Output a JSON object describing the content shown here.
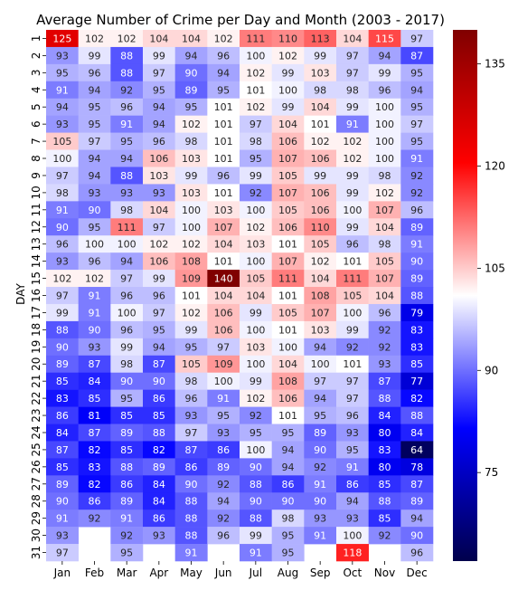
{
  "chart_data": {
    "type": "heatmap",
    "title": "Average Number of Crime per Day and Month (2003 - 2017)",
    "xlabel": "",
    "ylabel": "DAY",
    "x_categories": [
      "Jan",
      "Feb",
      "Mar",
      "Apr",
      "May",
      "Jun",
      "Jul",
      "Aug",
      "Sep",
      "Oct",
      "Nov",
      "Dec"
    ],
    "y_categories": [
      "1",
      "2",
      "3",
      "4",
      "5",
      "6",
      "7",
      "8",
      "9",
      "10",
      "11",
      "12",
      "13",
      "14",
      "15",
      "16",
      "17",
      "18",
      "19",
      "20",
      "21",
      "22",
      "23",
      "24",
      "25",
      "26",
      "27",
      "28",
      "29",
      "30",
      "31"
    ],
    "values": [
      [
        125,
        102,
        102,
        104,
        104,
        102,
        111,
        110,
        113,
        104,
        115,
        97
      ],
      [
        93,
        99,
        88,
        99,
        94,
        96,
        100,
        102,
        99,
        97,
        94,
        87
      ],
      [
        95,
        96,
        88,
        97,
        90,
        94,
        102,
        99,
        103,
        97,
        99,
        95
      ],
      [
        91,
        94,
        92,
        95,
        89,
        95,
        101,
        100,
        98,
        98,
        96,
        94
      ],
      [
        94,
        95,
        96,
        94,
        95,
        101,
        102,
        99,
        104,
        99,
        100,
        95
      ],
      [
        93,
        95,
        91,
        94,
        102,
        101,
        97,
        104,
        101,
        91,
        100,
        97
      ],
      [
        105,
        97,
        95,
        96,
        98,
        101,
        98,
        106,
        102,
        102,
        100,
        95
      ],
      [
        100,
        94,
        94,
        106,
        103,
        101,
        95,
        107,
        106,
        102,
        100,
        91
      ],
      [
        97,
        94,
        88,
        103,
        99,
        96,
        99,
        105,
        99,
        99,
        98,
        92
      ],
      [
        98,
        93,
        93,
        93,
        103,
        101,
        92,
        107,
        106,
        99,
        102,
        92
      ],
      [
        91,
        90,
        98,
        104,
        100,
        103,
        100,
        105,
        106,
        100,
        107,
        96
      ],
      [
        90,
        95,
        111,
        97,
        100,
        107,
        102,
        106,
        110,
        99,
        104,
        89
      ],
      [
        96,
        100,
        100,
        102,
        102,
        104,
        103,
        101,
        105,
        96,
        98,
        91
      ],
      [
        93,
        96,
        94,
        106,
        108,
        101,
        100,
        107,
        102,
        101,
        105,
        90
      ],
      [
        102,
        102,
        97,
        99,
        109,
        140,
        105,
        111,
        104,
        111,
        107,
        89
      ],
      [
        97,
        91,
        96,
        96,
        101,
        104,
        104,
        101,
        108,
        105,
        104,
        88
      ],
      [
        99,
        91,
        100,
        97,
        102,
        106,
        99,
        105,
        107,
        100,
        96,
        79
      ],
      [
        88,
        90,
        96,
        95,
        99,
        106,
        100,
        101,
        103,
        99,
        92,
        83
      ],
      [
        90,
        93,
        99,
        94,
        95,
        97,
        103,
        100,
        94,
        92,
        92,
        83
      ],
      [
        89,
        87,
        98,
        87,
        105,
        109,
        100,
        104,
        100,
        101,
        93,
        85
      ],
      [
        85,
        84,
        90,
        90,
        98,
        100,
        99,
        108,
        97,
        97,
        87,
        77
      ],
      [
        83,
        85,
        95,
        86,
        96,
        91,
        102,
        106,
        94,
        97,
        88,
        82
      ],
      [
        86,
        81,
        85,
        85,
        93,
        95,
        92,
        101,
        95,
        96,
        84,
        88
      ],
      [
        84,
        87,
        89,
        88,
        97,
        93,
        95,
        95,
        89,
        93,
        80,
        84
      ],
      [
        87,
        82,
        85,
        82,
        87,
        86,
        100,
        94,
        90,
        95,
        83,
        64
      ],
      [
        85,
        83,
        88,
        89,
        86,
        89,
        90,
        94,
        92,
        91,
        80,
        78
      ],
      [
        89,
        82,
        86,
        84,
        90,
        92,
        88,
        86,
        91,
        86,
        85,
        87
      ],
      [
        90,
        86,
        89,
        84,
        88,
        94,
        90,
        90,
        90,
        94,
        88,
        89
      ],
      [
        91,
        92,
        91,
        86,
        88,
        92,
        88,
        98,
        93,
        93,
        85,
        94
      ],
      [
        93,
        null,
        92,
        93,
        88,
        96,
        99,
        95,
        91,
        100,
        92,
        90
      ],
      [
        97,
        null,
        95,
        null,
        91,
        null,
        91,
        95,
        null,
        118,
        null,
        96
      ]
    ],
    "colorbar": {
      "colormap": "seismic",
      "vmin": 62,
      "vmax": 140,
      "ticks": [
        75,
        90,
        105,
        120,
        135
      ]
    },
    "colors": {
      "low": "#00004c",
      "mid": "#ffffff",
      "high": "#800000"
    }
  }
}
